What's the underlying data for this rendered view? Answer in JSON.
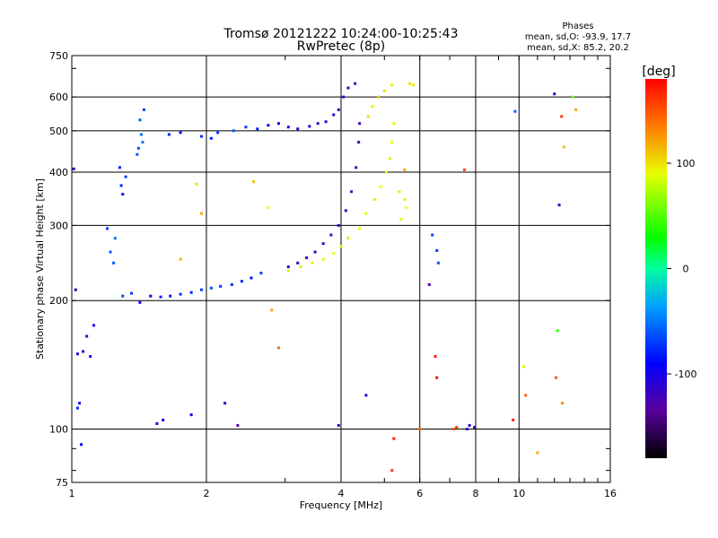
{
  "chart_data": {
    "type": "scatter",
    "title": "Tromsø 20121222 10:24:00-10:25:43",
    "subtitle": "RwPretec (8p)",
    "xlabel": "Frequency [MHz]",
    "ylabel": "Stationary phase Virtual Height [km]",
    "x_scale": "log",
    "y_scale": "log",
    "xlim": [
      1,
      16
    ],
    "ylim": [
      75,
      750
    ],
    "x_ticks": [
      1,
      2,
      4,
      6,
      8,
      10,
      16
    ],
    "x_tick_labels": [
      "1",
      "2",
      "4",
      "6",
      "8",
      "10",
      "16"
    ],
    "y_ticks": [
      75,
      100,
      200,
      300,
      400,
      500,
      600,
      750
    ],
    "y_tick_labels": [
      "75",
      "100",
      "200",
      "300",
      "400",
      "500",
      "600",
      "750"
    ],
    "grid": true,
    "stats": {
      "heading": "Phases",
      "line_o": "mean, sd,O: -93.9, 17.7",
      "line_x": "mean, sd,X:  85.2, 20.2"
    },
    "colorbar": {
      "label": "[deg]",
      "min": -180,
      "max": 180,
      "ticks": [
        100,
        0,
        -100
      ],
      "tick_labels": [
        "100",
        "0",
        "-100"
      ]
    },
    "points_note": "phase in degrees shown by colour",
    "series": [
      {
        "mode": "O",
        "points": [
          [
            1.01,
            407,
            -105
          ],
          [
            1.02,
            212,
            -110
          ],
          [
            1.04,
            115,
            -100
          ],
          [
            1.03,
            150,
            -110
          ],
          [
            1.06,
            152,
            -105
          ],
          [
            1.08,
            165,
            -110
          ],
          [
            1.1,
            148,
            -100
          ],
          [
            1.12,
            175,
            -105
          ],
          [
            1.05,
            92,
            -90
          ],
          [
            1.03,
            112,
            -80
          ],
          [
            1.22,
            260,
            -60
          ],
          [
            1.25,
            280,
            -55
          ],
          [
            1.24,
            245,
            -60
          ],
          [
            1.2,
            295,
            -70
          ],
          [
            1.28,
            410,
            -80
          ],
          [
            1.32,
            390,
            -70
          ],
          [
            1.3,
            355,
            -85
          ],
          [
            1.29,
            372,
            -75
          ],
          [
            1.4,
            440,
            -60
          ],
          [
            1.43,
            490,
            -55
          ],
          [
            1.42,
            530,
            -60
          ],
          [
            1.45,
            560,
            -70
          ],
          [
            1.44,
            470,
            -50
          ],
          [
            1.41,
            455,
            -65
          ],
          [
            1.3,
            205,
            -65
          ],
          [
            1.36,
            208,
            -70
          ],
          [
            1.42,
            198,
            -100
          ],
          [
            1.5,
            205,
            -90
          ],
          [
            1.58,
            204,
            -80
          ],
          [
            1.66,
            205,
            -85
          ],
          [
            1.75,
            207,
            -75
          ],
          [
            1.85,
            209,
            -80
          ],
          [
            1.95,
            212,
            -70
          ],
          [
            2.05,
            214,
            -65
          ],
          [
            2.15,
            216,
            -70
          ],
          [
            2.28,
            218,
            -75
          ],
          [
            2.4,
            222,
            -80
          ],
          [
            2.52,
            226,
            -85
          ],
          [
            2.65,
            232,
            -70
          ],
          [
            1.65,
            490,
            -80
          ],
          [
            1.75,
            495,
            -85
          ],
          [
            1.95,
            485,
            -75
          ],
          [
            2.05,
            480,
            -80
          ],
          [
            2.12,
            495,
            -70
          ],
          [
            2.3,
            500,
            -60
          ],
          [
            2.45,
            510,
            -70
          ],
          [
            2.6,
            505,
            -80
          ],
          [
            2.75,
            515,
            -95
          ],
          [
            2.9,
            520,
            -90
          ],
          [
            3.05,
            510,
            -100
          ],
          [
            3.2,
            505,
            -110
          ],
          [
            3.4,
            512,
            -115
          ],
          [
            3.55,
            520,
            -120
          ],
          [
            3.7,
            525,
            -110
          ],
          [
            3.85,
            545,
            -115
          ],
          [
            3.95,
            560,
            -115
          ],
          [
            4.05,
            600,
            -120
          ],
          [
            4.15,
            630,
            -120
          ],
          [
            4.3,
            645,
            -120
          ],
          [
            3.05,
            240,
            -110
          ],
          [
            3.2,
            245,
            -115
          ],
          [
            3.35,
            252,
            -120
          ],
          [
            3.5,
            260,
            -115
          ],
          [
            3.65,
            272,
            -120
          ],
          [
            3.8,
            285,
            -125
          ],
          [
            3.95,
            300,
            -120
          ],
          [
            4.1,
            325,
            -125
          ],
          [
            4.22,
            360,
            -130
          ],
          [
            4.32,
            410,
            -125
          ],
          [
            4.38,
            470,
            -120
          ],
          [
            4.4,
            520,
            -125
          ],
          [
            2.2,
            115,
            -120
          ],
          [
            2.35,
            102,
            -130
          ],
          [
            1.85,
            108,
            -100
          ],
          [
            1.55,
            103,
            -110
          ],
          [
            1.6,
            105,
            -90
          ],
          [
            3.95,
            102,
            -115
          ],
          [
            4.55,
            120,
            -110
          ],
          [
            6.3,
            218,
            -130
          ],
          [
            6.4,
            285,
            -70
          ],
          [
            6.55,
            262,
            -70
          ],
          [
            6.6,
            245,
            -65
          ],
          [
            7.65,
            100,
            -120
          ],
          [
            7.75,
            102,
            -110
          ],
          [
            7.95,
            101,
            -115
          ],
          [
            9.8,
            555,
            -60
          ],
          [
            12.0,
            610,
            -110
          ],
          [
            12.3,
            335,
            -120
          ]
        ]
      },
      {
        "mode": "X",
        "points": [
          [
            3.05,
            235,
            85
          ],
          [
            3.25,
            240,
            80
          ],
          [
            3.45,
            245,
            95
          ],
          [
            3.65,
            250,
            85
          ],
          [
            3.85,
            258,
            90
          ],
          [
            4.0,
            268,
            85
          ],
          [
            4.15,
            280,
            95
          ],
          [
            4.4,
            295,
            90
          ],
          [
            4.55,
            320,
            85
          ],
          [
            4.75,
            345,
            80
          ],
          [
            4.9,
            370,
            90
          ],
          [
            5.05,
            400,
            85
          ],
          [
            5.15,
            430,
            80
          ],
          [
            5.2,
            470,
            90
          ],
          [
            5.25,
            520,
            85
          ],
          [
            4.6,
            540,
            100
          ],
          [
            4.7,
            570,
            95
          ],
          [
            4.85,
            600,
            110
          ],
          [
            5.0,
            620,
            100
          ],
          [
            5.2,
            640,
            95
          ],
          [
            5.4,
            360,
            80
          ],
          [
            5.55,
            345,
            85
          ],
          [
            5.6,
            330,
            90
          ],
          [
            5.45,
            310,
            85
          ],
          [
            5.7,
            645,
            100
          ],
          [
            5.8,
            640,
            95
          ],
          [
            5.55,
            405,
            120
          ],
          [
            1.95,
            320,
            120
          ],
          [
            1.75,
            250,
            115
          ],
          [
            2.75,
            330,
            90
          ],
          [
            2.55,
            380,
            110
          ],
          [
            1.9,
            375,
            100
          ],
          [
            2.8,
            190,
            120
          ],
          [
            2.9,
            155,
            140
          ],
          [
            5.2,
            80,
            160
          ],
          [
            5.25,
            95,
            170
          ],
          [
            6.0,
            100,
            140
          ],
          [
            7.15,
            100,
            150
          ],
          [
            7.25,
            101,
            155
          ],
          [
            6.5,
            148,
            170
          ],
          [
            6.55,
            132,
            175
          ],
          [
            10.25,
            140,
            95
          ],
          [
            10.35,
            120,
            145
          ],
          [
            11.0,
            88,
            120
          ],
          [
            12.5,
            115,
            130
          ],
          [
            12.6,
            458,
            110
          ],
          [
            13.2,
            600,
            60
          ],
          [
            13.4,
            560,
            120
          ],
          [
            12.45,
            540,
            160
          ],
          [
            12.2,
            170,
            40
          ],
          [
            12.1,
            132,
            150
          ],
          [
            9.7,
            105,
            170
          ],
          [
            7.55,
            405,
            155
          ]
        ]
      }
    ]
  }
}
